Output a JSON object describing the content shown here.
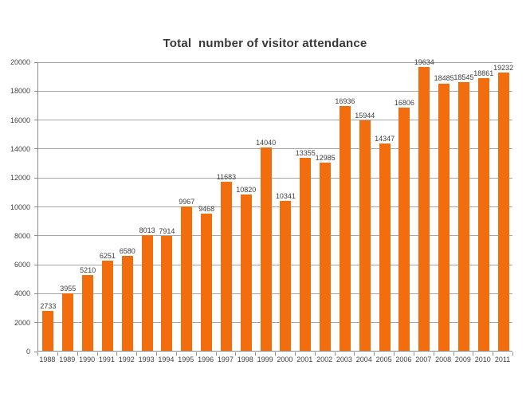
{
  "chart_data": {
    "type": "bar",
    "title": "Total  number of visitor attendance",
    "categories": [
      "1988",
      "1989",
      "1990",
      "1991",
      "1992",
      "1993",
      "1994",
      "1995",
      "1996",
      "1997",
      "1998",
      "1999",
      "2000",
      "2001",
      "2002",
      "2003",
      "2004",
      "2005",
      "2006",
      "2007",
      "2008",
      "2009",
      "2010",
      "2011"
    ],
    "values": [
      2733,
      3955,
      5210,
      6251,
      6580,
      8013,
      7914,
      9967,
      9468,
      11683,
      10820,
      14040,
      10341,
      13355,
      12985,
      16936,
      15944,
      14347,
      16806,
      19634,
      18485,
      18545,
      18861,
      19232
    ],
    "xlabel": "",
    "ylabel": "",
    "ylim": [
      0,
      20000
    ],
    "ytick_step": 2000,
    "yticks": [
      "0",
      "2000",
      "4000",
      "6000",
      "8000",
      "10000",
      "12000",
      "14000",
      "16000",
      "18000",
      "20000"
    ],
    "grid": true,
    "legend_position": "none",
    "data_labels": true,
    "colors": {
      "bar": "#F26D0D",
      "gridline": "#A6A6A6",
      "axis": "#8C8C8C",
      "title": "#383838",
      "tick_label": "#3F3F3F",
      "value_label": "#404040",
      "background": "#FFFFFF"
    }
  }
}
